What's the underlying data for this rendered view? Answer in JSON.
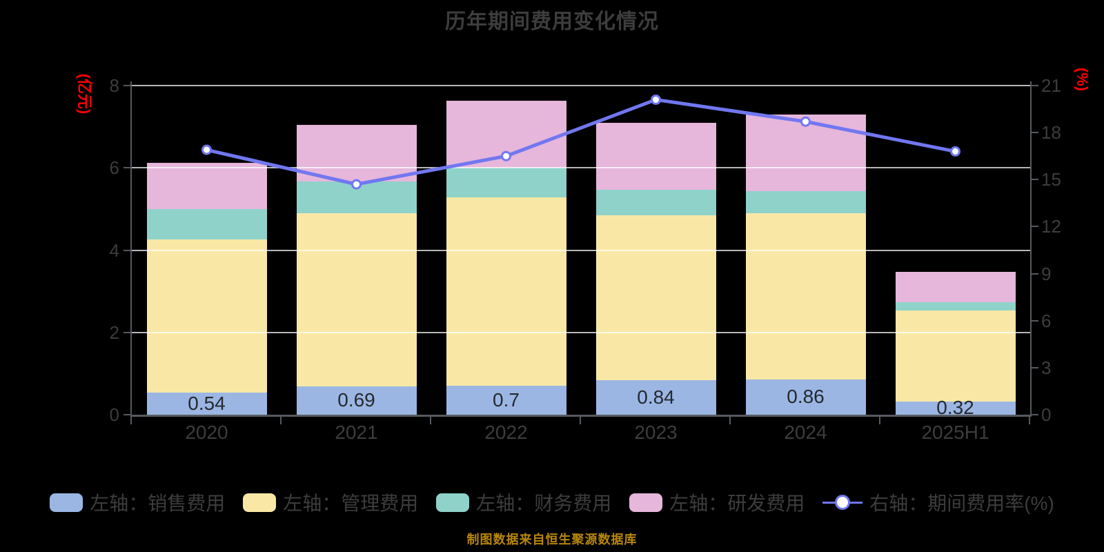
{
  "title": "历年期间费用变化情况",
  "footer_note": "制图数据来自恒生聚源数据库",
  "colors": {
    "background": "#000000",
    "text": "#3d3d3d",
    "axis_line": "#565a60",
    "gridline": "rgba(255,255,255,0.72)",
    "axis_name_red": "#ff0000",
    "footer_gold": "#b8860b"
  },
  "chart_data": {
    "type": "bar",
    "subtype": "stacked bars with right-axis line overlay",
    "categories": [
      "2020",
      "2021",
      "2022",
      "2023",
      "2024",
      "2025H1"
    ],
    "series": [
      {
        "name": "左轴：销售费用",
        "type": "bar",
        "stack": true,
        "color": "#9cb6e4",
        "values": [
          0.54,
          0.69,
          0.7,
          0.84,
          0.86,
          0.32
        ],
        "data_labels": [
          "0.54",
          "0.69",
          "0.7",
          "0.84",
          "0.86",
          "0.32"
        ]
      },
      {
        "name": "左轴：管理费用",
        "type": "bar",
        "stack": true,
        "color": "#f9e8a5",
        "values": [
          3.72,
          4.21,
          4.58,
          4.0,
          4.04,
          2.21
        ]
      },
      {
        "name": "左轴：财务费用",
        "type": "bar",
        "stack": true,
        "color": "#8fd2ca",
        "values": [
          0.73,
          0.77,
          0.73,
          0.62,
          0.54,
          0.2
        ]
      },
      {
        "name": "左轴：研发费用",
        "type": "bar",
        "stack": true,
        "color": "#e6b6db",
        "values": [
          1.13,
          1.38,
          1.62,
          1.64,
          1.86,
          0.74
        ]
      },
      {
        "name": "右轴：期间费用率(%)",
        "type": "line",
        "yaxis": "right",
        "color": "#7177f0",
        "marker": "circle",
        "values": [
          16.9,
          14.7,
          16.5,
          20.1,
          18.7,
          16.8
        ]
      }
    ],
    "left_axis": {
      "name": "(亿元)",
      "min": 0,
      "max": 8,
      "ticks": [
        0,
        2,
        4,
        6,
        8
      ]
    },
    "right_axis": {
      "name": "(%)",
      "min": 0,
      "max": 21,
      "ticks": [
        0,
        3,
        6,
        9,
        12,
        15,
        18,
        21
      ]
    },
    "grid": true,
    "legend_position": "bottom"
  }
}
